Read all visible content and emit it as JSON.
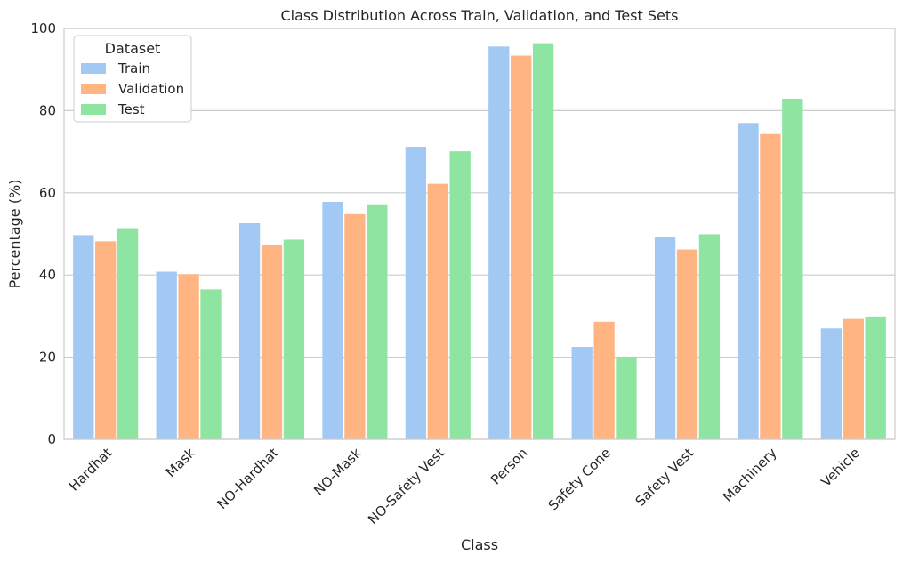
{
  "chart_data": {
    "type": "bar",
    "title": "Class Distribution Across Train, Validation, and Test Sets",
    "xlabel": "Class",
    "ylabel": "Percentage (%)",
    "ylim": [
      0,
      100
    ],
    "yticks": [
      0,
      20,
      40,
      60,
      80,
      100
    ],
    "grid": "horizontal",
    "legend_title": "Dataset",
    "legend_position": "top-left",
    "categories": [
      "Hardhat",
      "Mask",
      "NO-Hardhat",
      "NO-Mask",
      "NO-Safety Vest",
      "Person",
      "Safety Cone",
      "Safety Vest",
      "Machinery",
      "Vehicle"
    ],
    "series": [
      {
        "name": "Train",
        "color": "#a1c9f4",
        "values": [
          49.7,
          40.8,
          52.6,
          57.8,
          71.2,
          95.6,
          22.5,
          49.3,
          77.0,
          27.0
        ]
      },
      {
        "name": "Validation",
        "color": "#ffb482",
        "values": [
          48.2,
          40.2,
          47.3,
          54.8,
          62.2,
          93.4,
          28.6,
          46.2,
          74.3,
          29.3
        ]
      },
      {
        "name": "Test",
        "color": "#8de5a1",
        "values": [
          51.4,
          36.5,
          48.6,
          57.2,
          70.1,
          96.4,
          20.1,
          49.9,
          82.9,
          29.9
        ]
      }
    ]
  }
}
